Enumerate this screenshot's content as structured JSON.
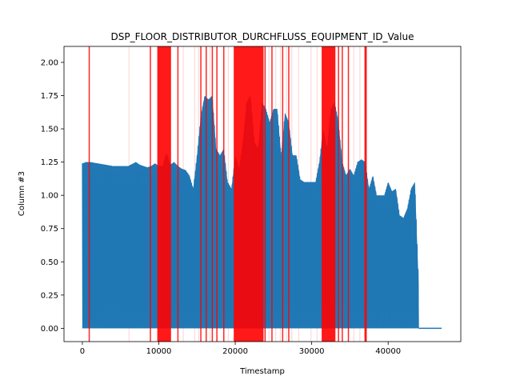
{
  "chart_data": {
    "type": "line",
    "title": "DSP_FLOOR_DISTRIBUTOR_DURCHFLUSS_EQUIPMENT_ID_Value",
    "xlabel": "Timestamp",
    "ylabel": "Column #3",
    "xlim": [
      -2400,
      49500
    ],
    "ylim": [
      -0.1,
      2.12
    ],
    "xticks": [
      0,
      10000,
      20000,
      30000,
      40000
    ],
    "xtick_labels": [
      "0",
      "10000",
      "20000",
      "30000",
      "40000"
    ],
    "yticks": [
      0.0,
      0.25,
      0.5,
      0.75,
      1.0,
      1.25,
      1.5,
      1.75,
      2.0
    ],
    "ytick_labels": [
      "0.00",
      "0.25",
      "0.50",
      "0.75",
      "1.00",
      "1.25",
      "1.50",
      "1.75",
      "2.00"
    ],
    "grid": false,
    "line_color": "#1f77b4",
    "anomaly_color": "#ff0000",
    "series": [
      {
        "envelope": {
          "x": [
            0,
            500,
            1000,
            2000,
            3000,
            4000,
            5000,
            6000,
            7000,
            7500,
            8000,
            8500,
            9000,
            9500,
            10000,
            10500,
            11000,
            11500,
            12000,
            12500,
            13000,
            13500,
            14000,
            14500,
            15000,
            15500,
            16000,
            16500,
            17000,
            17500,
            18000,
            18500,
            19000,
            19500,
            20000,
            20500,
            21000,
            21500,
            22000,
            22500,
            23000,
            23500,
            24000,
            24500,
            25000,
            25500,
            26000,
            26500,
            27000,
            27500,
            28000,
            28500,
            29000,
            29500,
            30000,
            30500,
            31000,
            31500,
            32000,
            32500,
            33000,
            33500,
            34000,
            34500,
            35000,
            35500,
            36000,
            36500,
            37000,
            37500,
            38000,
            38500,
            39000,
            39500,
            40000,
            40500,
            41000,
            41500,
            42000,
            42500,
            43000,
            43500,
            44000
          ],
          "ymax": [
            1.24,
            1.25,
            1.25,
            1.24,
            1.23,
            1.22,
            1.22,
            1.22,
            1.25,
            1.23,
            1.22,
            1.21,
            1.22,
            1.24,
            1.22,
            1.22,
            1.32,
            1.23,
            1.25,
            1.22,
            1.2,
            1.19,
            1.15,
            1.05,
            1.3,
            1.6,
            1.75,
            1.72,
            1.75,
            1.35,
            1.3,
            1.35,
            1.1,
            1.05,
            1.3,
            1.2,
            1.4,
            1.7,
            1.75,
            1.4,
            1.35,
            1.7,
            1.65,
            1.55,
            1.65,
            1.65,
            1.3,
            1.62,
            1.55,
            1.3,
            1.3,
            1.12,
            1.1,
            1.1,
            1.1,
            1.1,
            1.25,
            1.5,
            1.35,
            1.65,
            1.7,
            1.55,
            1.25,
            1.15,
            1.2,
            1.15,
            1.25,
            1.27,
            1.25,
            1.05,
            1.15,
            1.0,
            1.0,
            1.0,
            1.1,
            1.03,
            1.05,
            0.85,
            0.83,
            0.9,
            1.05,
            1.1,
            0.32
          ],
          "ymin": [
            0.0,
            0.0,
            0.0,
            0.0,
            0.0,
            0.0,
            0.0,
            0.0,
            0.0,
            0.0,
            0.0,
            0.0,
            0.0,
            0.0,
            0.0,
            0.0,
            0.0,
            0.0,
            0.0,
            0.0,
            0.0,
            0.0,
            0.0,
            0.0,
            0.0,
            0.0,
            0.0,
            0.0,
            0.0,
            0.0,
            0.0,
            0.0,
            0.0,
            0.0,
            0.0,
            0.0,
            0.0,
            0.0,
            0.0,
            0.0,
            0.0,
            0.0,
            0.0,
            0.0,
            0.0,
            0.0,
            0.0,
            0.0,
            0.0,
            0.0,
            0.0,
            0.0,
            0.0,
            0.0,
            0.0,
            0.0,
            0.0,
            0.0,
            0.0,
            0.0,
            0.0,
            0.0,
            0.0,
            0.0,
            0.0,
            0.0,
            0.0,
            0.0,
            0.0,
            0.0,
            0.0,
            0.0,
            0.0,
            0.0,
            0.0,
            0.0,
            0.0,
            0.0,
            0.0,
            0.0,
            0.0,
            0.0,
            0.0
          ]
        },
        "flat_tail": {
          "x": [
            44000,
            47000
          ],
          "y": [
            0.0,
            0.0
          ]
        }
      }
    ],
    "anomaly_bands": [
      [
        9800,
        11600
      ],
      [
        19800,
        23700
      ],
      [
        31300,
        33100
      ],
      [
        36900,
        37200
      ]
    ],
    "anomaly_lines_strong": [
      900,
      8900,
      12500,
      15500,
      16200,
      17000,
      17600,
      18500,
      23900,
      24800,
      26200,
      27000,
      33500,
      34000,
      34800
    ],
    "anomaly_lines_faint": [
      6100,
      13200,
      14700,
      15200,
      16700,
      19100,
      24400,
      25300,
      25900,
      26700,
      27400,
      28300,
      29900,
      30700,
      35500,
      36300
    ]
  }
}
